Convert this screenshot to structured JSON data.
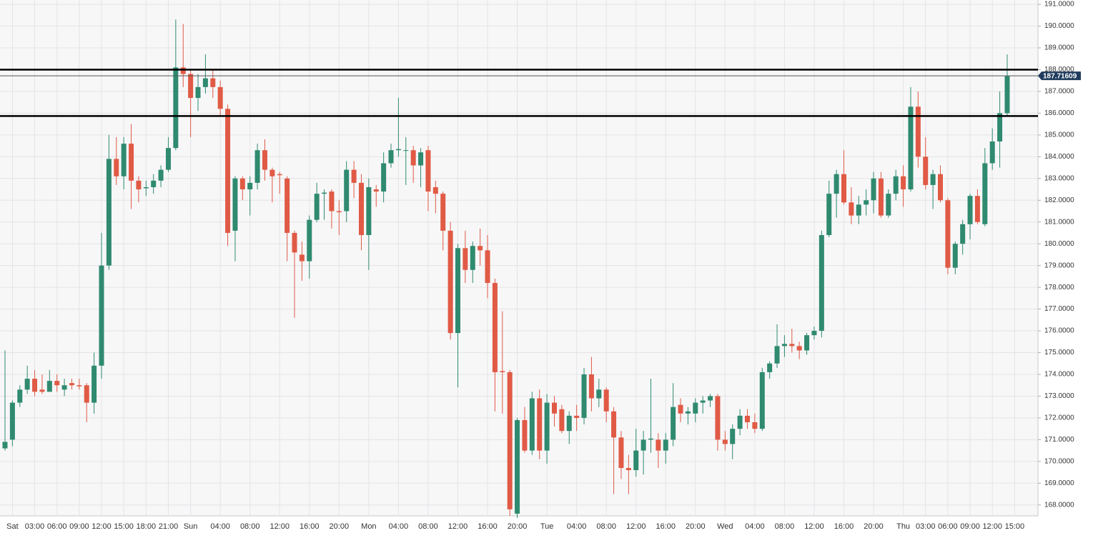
{
  "chart_data": {
    "type": "candlestick",
    "categories": [
      null,
      "Sat",
      null,
      null,
      "03:00",
      null,
      null,
      "06:00",
      null,
      null,
      "09:00",
      null,
      null,
      "12:00",
      null,
      null,
      "15:00",
      null,
      null,
      "18:00",
      null,
      null,
      "21:00",
      null,
      null,
      "Sun",
      null,
      null,
      null,
      "04:00",
      null,
      null,
      null,
      "08:00",
      null,
      null,
      null,
      "12:00",
      null,
      null,
      null,
      "16:00",
      null,
      null,
      null,
      "20:00",
      null,
      null,
      null,
      "Mon",
      null,
      null,
      null,
      "04:00",
      null,
      null,
      null,
      "08:00",
      null,
      null,
      null,
      "12:00",
      null,
      null,
      null,
      "16:00",
      null,
      null,
      null,
      "20:00",
      null,
      null,
      null,
      "Tue",
      null,
      null,
      null,
      "04:00",
      null,
      null,
      null,
      "08:00",
      null,
      null,
      null,
      "12:00",
      null,
      null,
      null,
      "16:00",
      null,
      null,
      null,
      "20:00",
      null,
      null,
      null,
      "Wed",
      null,
      null,
      null,
      "04:00",
      null,
      null,
      null,
      "08:00",
      null,
      null,
      null,
      "12:00",
      null,
      null,
      null,
      "16:00",
      null,
      null,
      null,
      "20:00",
      null,
      null,
      null,
      "Thu",
      null,
      null,
      "03:00",
      null,
      null,
      "06:00",
      null,
      null,
      "09:00",
      null,
      null,
      "12:00",
      null,
      null,
      "15:00"
    ],
    "open": [
      170.6,
      171.0,
      172.7,
      173.3,
      173.8,
      173.3,
      173.2,
      173.7,
      173.3,
      173.6,
      173.5,
      173.5,
      172.7,
      174.4,
      179.0,
      183.9,
      183.1,
      184.6,
      182.9,
      182.55,
      182.6,
      182.9,
      183.4,
      184.4,
      188.1,
      187.8,
      186.7,
      187.2,
      187.6,
      187.2,
      186.2,
      180.6,
      183.0,
      182.5,
      182.8,
      184.3,
      183.4,
      183.2,
      183.0,
      180.5,
      179.5,
      179.2,
      181.1,
      182.3,
      182.4,
      181.5,
      181.5,
      183.4,
      182.8,
      180.4,
      182.5,
      182.4,
      183.7,
      184.3,
      184.3,
      184.3,
      183.6,
      184.3,
      182.6,
      182.3,
      180.6,
      175.9,
      179.8,
      178.8,
      179.9,
      179.7,
      178.2,
      174.15,
      174.1,
      167.6,
      171.9,
      170.5,
      172.9,
      170.5,
      172.7,
      172.4,
      171.4,
      172.1,
      172.0,
      174.0,
      172.9,
      173.3,
      172.3,
      171.1,
      169.7,
      169.6,
      170.5,
      171.0,
      171.0,
      170.5,
      171.0,
      172.6,
      172.2,
      172.2,
      172.7,
      172.8,
      173.0,
      171.0,
      170.8,
      171.5,
      172.1,
      171.8,
      171.5,
      174.1,
      174.5,
      175.3,
      175.4,
      175.3,
      175.1,
      175.8,
      176.0,
      180.4,
      182.3,
      183.2,
      181.9,
      181.3,
      181.8,
      182.0,
      183.0,
      181.3,
      182.3,
      183.1,
      182.5,
      186.3,
      184.0,
      182.7,
      183.2,
      182.0,
      178.9,
      180.0,
      180.9,
      182.2,
      180.9,
      183.7,
      184.7,
      186.0,
      null
    ],
    "high": [
      175.1,
      172.8,
      173.5,
      174.4,
      174.2,
      174.0,
      174.2,
      174.0,
      173.8,
      173.8,
      173.8,
      173.6,
      175.0,
      180.5,
      185.0,
      184.9,
      184.9,
      185.5,
      183.1,
      182.9,
      183.2,
      183.6,
      184.9,
      190.3,
      190.1,
      188.0,
      187.8,
      188.7,
      188.0,
      187.5,
      186.4,
      183.1,
      183.1,
      183.1,
      184.6,
      184.8,
      183.5,
      183.3,
      183.1,
      180.6,
      180.1,
      181.3,
      182.8,
      182.5,
      182.5,
      182.0,
      183.8,
      183.8,
      183.2,
      183.0,
      182.7,
      184.2,
      184.6,
      186.7,
      184.9,
      184.5,
      184.4,
      184.5,
      182.9,
      182.4,
      181.0,
      180.0,
      180.6,
      180.1,
      180.7,
      180.4,
      178.4,
      176.9,
      174.2,
      172.0,
      172.5,
      173.2,
      173.3,
      173.1,
      173.0,
      172.6,
      172.3,
      172.6,
      174.3,
      174.8,
      173.8,
      173.4,
      172.5,
      171.4,
      170.3,
      171.5,
      171.4,
      173.8,
      171.3,
      171.3,
      173.6,
      172.9,
      172.5,
      172.9,
      173.0,
      173.1,
      173.1,
      171.4,
      171.7,
      172.4,
      172.4,
      172.2,
      174.3,
      174.6,
      176.3,
      175.8,
      176.1,
      175.5,
      175.9,
      176.2,
      180.6,
      182.9,
      183.4,
      184.3,
      182.6,
      182.2,
      182.5,
      183.3,
      183.3,
      182.5,
      183.4,
      183.6,
      187.2,
      187.0,
      184.9,
      183.4,
      183.6,
      182.1,
      180.1,
      181.1,
      182.3,
      182.5,
      184.4,
      185.3,
      187.0,
      188.7,
      null
    ],
    "low": [
      170.5,
      170.7,
      172.5,
      173.1,
      173.0,
      173.1,
      173.2,
      173.2,
      173.0,
      173.3,
      173.3,
      171.8,
      172.2,
      173.8,
      178.8,
      182.7,
      182.5,
      181.6,
      181.9,
      182.2,
      182.3,
      182.6,
      183.3,
      184.3,
      187.2,
      184.9,
      186.1,
      186.9,
      186.7,
      185.9,
      179.9,
      179.2,
      182.0,
      181.3,
      182.5,
      182.9,
      181.9,
      182.3,
      179.2,
      176.6,
      178.3,
      178.4,
      181.0,
      181.1,
      180.7,
      180.4,
      181.0,
      182.1,
      179.7,
      178.8,
      181.7,
      181.9,
      183.5,
      184.0,
      182.7,
      182.8,
      182.6,
      181.5,
      181.4,
      179.7,
      175.6,
      173.4,
      178.2,
      178.2,
      179.0,
      177.5,
      172.3,
      172.2,
      167.5,
      167.4,
      170.4,
      170.3,
      170.1,
      169.9,
      171.6,
      171.3,
      170.8,
      171.4,
      171.7,
      172.3,
      172.5,
      171.8,
      168.5,
      169.2,
      168.5,
      169.3,
      169.4,
      170.4,
      169.7,
      169.9,
      170.7,
      171.8,
      171.7,
      171.8,
      172.2,
      172.5,
      170.5,
      170.5,
      170.1,
      171.2,
      171.5,
      171.3,
      171.4,
      173.8,
      174.3,
      174.8,
      175.0,
      174.7,
      174.9,
      175.6,
      175.7,
      180.3,
      181.2,
      181.8,
      180.9,
      180.9,
      181.3,
      181.4,
      181.2,
      181.2,
      182.0,
      181.7,
      182.4,
      183.5,
      182.5,
      181.6,
      181.9,
      178.6,
      178.6,
      179.5,
      180.2,
      180.9,
      180.8,
      183.4,
      183.5,
      185.9,
      null
    ],
    "close": [
      170.9,
      172.7,
      173.3,
      173.8,
      173.2,
      173.2,
      173.7,
      173.5,
      173.5,
      173.5,
      173.45,
      172.7,
      174.4,
      179.0,
      183.9,
      183.1,
      184.6,
      182.9,
      182.5,
      182.6,
      182.9,
      183.4,
      184.4,
      188.1,
      187.8,
      186.7,
      187.2,
      187.6,
      187.2,
      186.2,
      180.5,
      183.0,
      182.5,
      182.8,
      184.3,
      183.4,
      183.1,
      183.15,
      180.5,
      179.6,
      179.2,
      181.1,
      182.3,
      182.35,
      181.5,
      181.45,
      183.4,
      182.8,
      180.4,
      182.6,
      182.4,
      183.7,
      184.3,
      184.35,
      184.3,
      183.6,
      184.2,
      182.4,
      182.3,
      180.6,
      175.9,
      179.8,
      178.8,
      179.9,
      179.7,
      178.2,
      174.1,
      174.1,
      167.8,
      171.9,
      170.5,
      172.9,
      170.5,
      172.7,
      172.2,
      171.4,
      172.1,
      172.0,
      174.0,
      172.9,
      173.3,
      172.3,
      171.1,
      169.7,
      169.6,
      170.5,
      171.0,
      171.05,
      170.5,
      171.0,
      172.5,
      172.2,
      172.3,
      172.7,
      172.8,
      173.0,
      171.0,
      170.8,
      171.5,
      172.1,
      171.8,
      171.5,
      174.1,
      174.5,
      175.3,
      175.4,
      175.3,
      175.1,
      175.8,
      176.0,
      180.4,
      182.3,
      183.2,
      181.9,
      181.3,
      181.8,
      182.0,
      183.0,
      181.3,
      182.3,
      183.1,
      182.5,
      186.3,
      184.0,
      182.7,
      183.2,
      182.0,
      178.9,
      180.0,
      180.9,
      182.2,
      181.0,
      183.7,
      184.7,
      186.0,
      187.7,
      null
    ],
    "up_color": "#2f8a6f",
    "down_color": "#e05a45",
    "ylim": [
      167.5,
      191.2
    ],
    "yticks": [
      {
        "value": 168,
        "label": "168.0000"
      },
      {
        "value": 169,
        "label": "169.0000"
      },
      {
        "value": 170,
        "label": "170.0000"
      },
      {
        "value": 171,
        "label": "171.0000"
      },
      {
        "value": 172,
        "label": "172.0000"
      },
      {
        "value": 173,
        "label": "173.0000"
      },
      {
        "value": 174,
        "label": "174.0000"
      },
      {
        "value": 175,
        "label": "175.0000"
      },
      {
        "value": 176,
        "label": "176.0000"
      },
      {
        "value": 177,
        "label": "177.0000"
      },
      {
        "value": 178,
        "label": "178.0000"
      },
      {
        "value": 179,
        "label": "179.0000"
      },
      {
        "value": 180,
        "label": "180.0000"
      },
      {
        "value": 181,
        "label": "181.0000"
      },
      {
        "value": 182,
        "label": "182.0000"
      },
      {
        "value": 183,
        "label": "183.0000"
      },
      {
        "value": 184,
        "label": "184.0000"
      },
      {
        "value": 185,
        "label": "185.0000"
      },
      {
        "value": 186,
        "label": "186.0000"
      },
      {
        "value": 187,
        "label": "187.0000"
      },
      {
        "value": 188,
        "label": "188.0000"
      },
      {
        "value": 189,
        "label": "189.0000"
      },
      {
        "value": 190,
        "label": "190.0000"
      },
      {
        "value": 191,
        "label": "191.0000"
      }
    ],
    "grid": true,
    "levels": [
      188.0,
      185.87
    ],
    "last_price": 187.71609
  }
}
